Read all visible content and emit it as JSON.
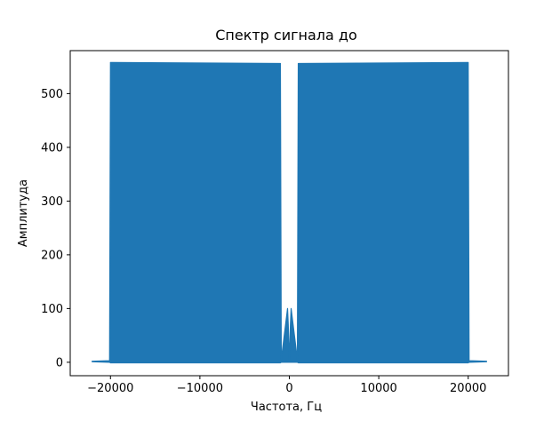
{
  "chart_data": {
    "type": "area",
    "title": "Спектр сигнала до",
    "xlabel": "Частота, Гц",
    "ylabel": "Амплитуда",
    "xlim": [
      -24500,
      24500
    ],
    "ylim": [
      -25,
      580
    ],
    "xticks": [
      -20000,
      -10000,
      0,
      10000,
      20000
    ],
    "xtick_labels": [
      "−20000",
      "−10000",
      "0",
      "10000",
      "20000"
    ],
    "yticks": [
      0,
      100,
      200,
      300,
      400,
      500
    ],
    "ytick_labels": [
      "0",
      "100",
      "200",
      "300",
      "400",
      "500"
    ],
    "grid": false,
    "series_color": "#1f77b4",
    "series": [
      {
        "x": [
          -22050,
          -20100,
          -20000,
          -1000,
          -900,
          -200,
          -120,
          0,
          120,
          200,
          900,
          1000,
          20000,
          20100,
          22050
        ],
        "y": [
          2,
          3,
          558,
          556,
          5,
          100,
          70,
          0,
          70,
          100,
          5,
          556,
          558,
          3,
          2
        ],
        "fill_min": [
          1,
          0,
          -1,
          -1,
          0,
          0,
          0,
          0,
          0,
          0,
          0,
          -1,
          -1,
          0,
          1
        ]
      }
    ]
  }
}
